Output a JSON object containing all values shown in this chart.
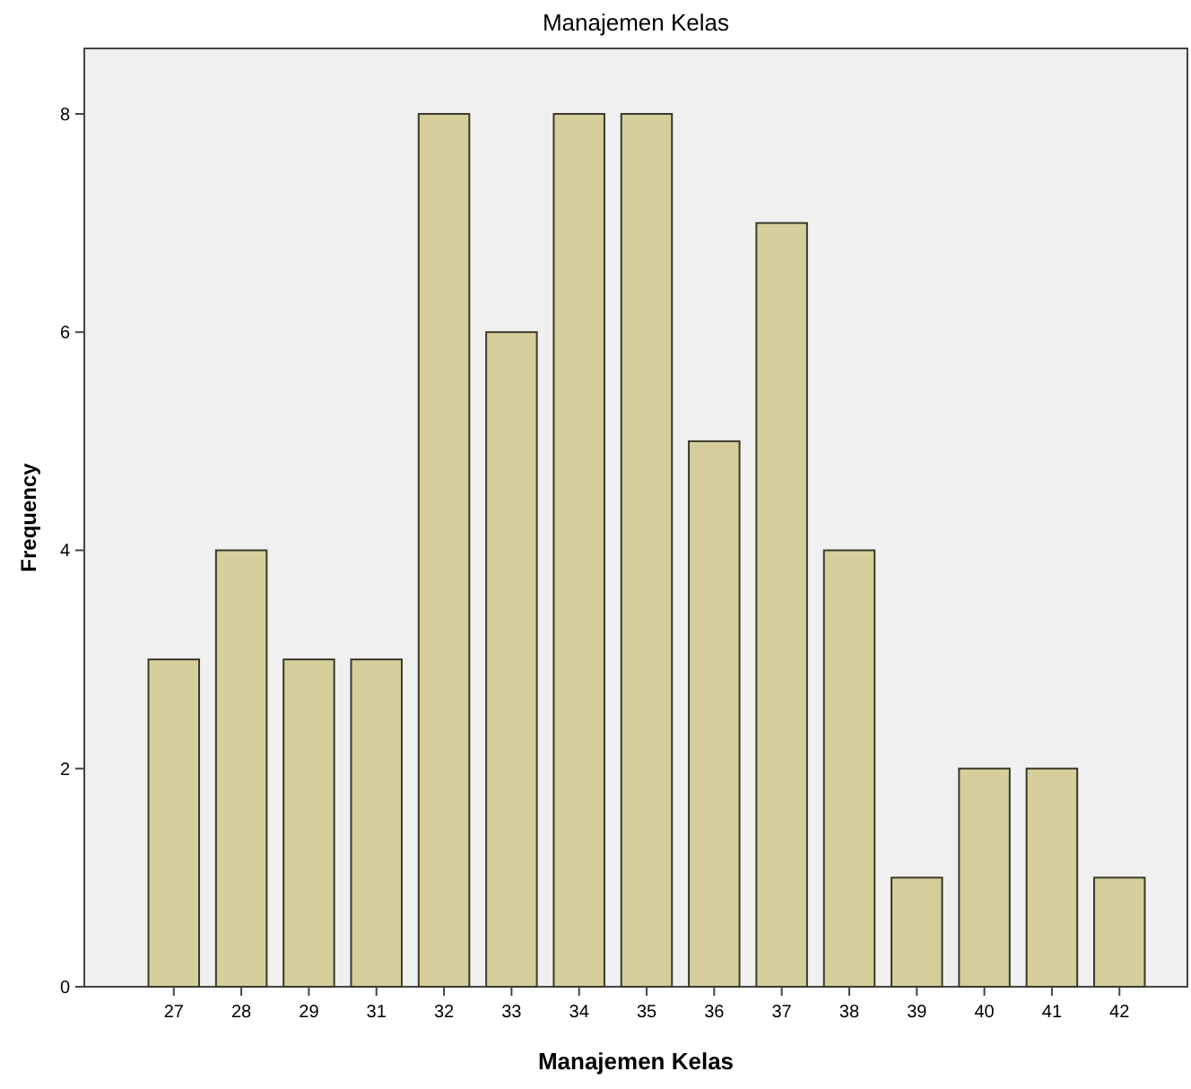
{
  "chart_data": {
    "type": "bar",
    "title": "Manajemen Kelas",
    "xlabel": "Manajemen Kelas",
    "ylabel": "Frequency",
    "categories": [
      "27",
      "28",
      "29",
      "31",
      "32",
      "33",
      "34",
      "35",
      "36",
      "37",
      "38",
      "39",
      "40",
      "41",
      "42"
    ],
    "values": [
      3,
      4,
      3,
      3,
      8,
      6,
      8,
      8,
      5,
      7,
      4,
      1,
      2,
      2,
      1
    ],
    "color": "#d6cf9c",
    "ylim": [
      0,
      8.6
    ],
    "yticks": [
      0,
      2,
      4,
      6,
      8
    ],
    "grid": false
  }
}
